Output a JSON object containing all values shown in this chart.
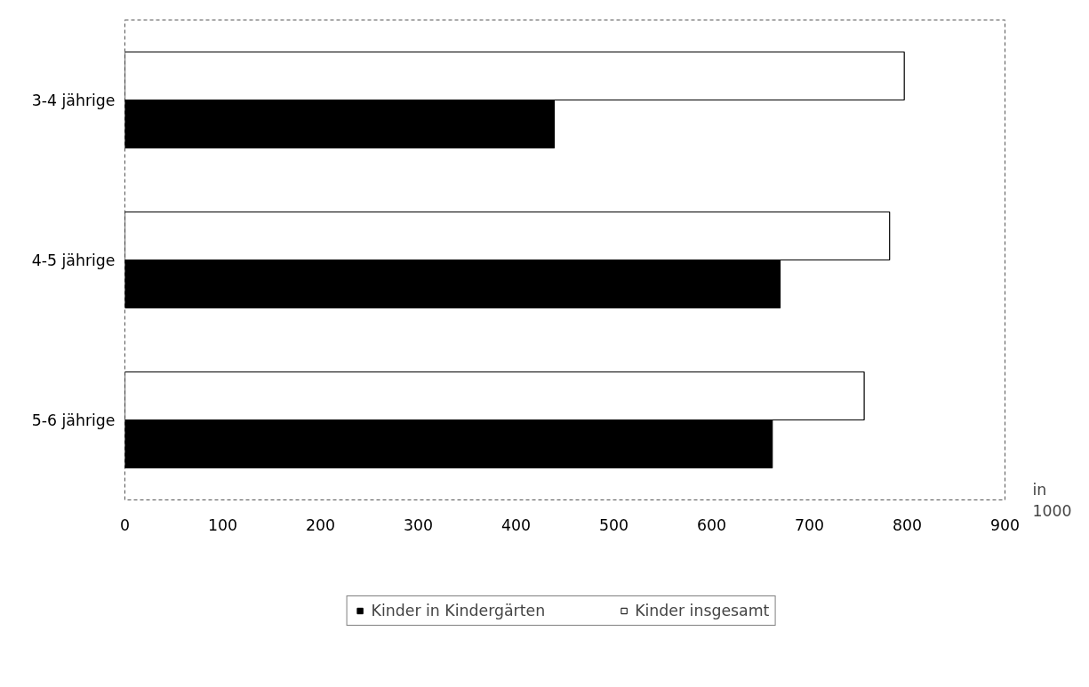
{
  "chart_data": {
    "type": "bar",
    "orientation": "horizontal",
    "categories": [
      "3-4 jährige",
      "4-5 jährige",
      "5-6 jährige"
    ],
    "series": [
      {
        "name": "Kinder in Kindergärten",
        "color": "#000000",
        "values": [
          439,
          670,
          662
        ]
      },
      {
        "name": "Kinder insgesamt",
        "color": "#ffffff",
        "values": [
          797,
          782,
          756
        ]
      }
    ],
    "xlim": [
      0,
      900
    ],
    "xticks": [
      0,
      100,
      200,
      300,
      400,
      500,
      600,
      700,
      800,
      900
    ],
    "annotations": [
      "in 1000"
    ],
    "grid": false,
    "legend": "bottom"
  }
}
